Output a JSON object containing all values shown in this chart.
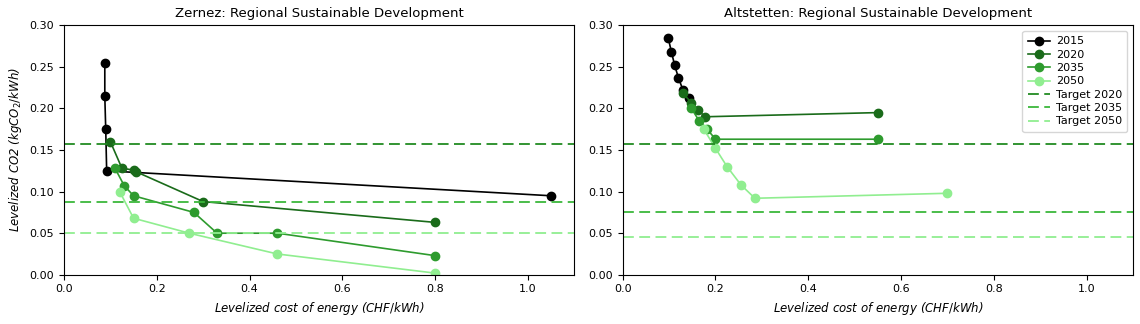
{
  "zernez_title": "Zernez: Regional Sustainable Development",
  "altstetten_title": "Altstetten: Regional Sustainable Development",
  "xlim": [
    0.0,
    1.1
  ],
  "ylim": [
    0.0,
    0.3
  ],
  "zernez": {
    "2015": {
      "x": [
        0.088,
        0.088,
        0.09,
        0.092,
        1.05
      ],
      "y": [
        0.255,
        0.215,
        0.175,
        0.125,
        0.095
      ],
      "color": "#000000"
    },
    "2020": {
      "x": [
        0.1,
        0.125,
        0.15,
        0.155,
        0.3,
        0.8
      ],
      "y": [
        0.16,
        0.128,
        0.126,
        0.124,
        0.088,
        0.063
      ],
      "color": "#1a6b1a"
    },
    "2035": {
      "x": [
        0.11,
        0.13,
        0.15,
        0.28,
        0.33,
        0.46,
        0.8
      ],
      "y": [
        0.128,
        0.107,
        0.095,
        0.075,
        0.05,
        0.05,
        0.023
      ],
      "color": "#2e9b2e"
    },
    "2050": {
      "x": [
        0.12,
        0.15,
        0.27,
        0.46,
        0.8
      ],
      "y": [
        0.1,
        0.068,
        0.05,
        0.025,
        0.002
      ],
      "color": "#90ee90"
    }
  },
  "altstetten": {
    "2015": {
      "x": [
        0.098,
        0.105,
        0.112,
        0.12,
        0.13,
        0.142
      ],
      "y": [
        0.285,
        0.268,
        0.252,
        0.237,
        0.222,
        0.212
      ],
      "color": "#000000"
    },
    "2020": {
      "x": [
        0.13,
        0.148,
        0.162,
        0.178,
        0.55
      ],
      "y": [
        0.218,
        0.207,
        0.198,
        0.19,
        0.195
      ],
      "color": "#1a6b1a"
    },
    "2035": {
      "x": [
        0.148,
        0.165,
        0.182,
        0.2,
        0.55
      ],
      "y": [
        0.2,
        0.185,
        0.175,
        0.163,
        0.163
      ],
      "color": "#2e9b2e"
    },
    "2050": {
      "x": [
        0.175,
        0.2,
        0.225,
        0.255,
        0.285,
        0.7
      ],
      "y": [
        0.175,
        0.152,
        0.13,
        0.108,
        0.092,
        0.098
      ],
      "color": "#90ee90"
    }
  },
  "zernez_targets": {
    "2020": {
      "value": 0.157,
      "color": "#228B22"
    },
    "2035": {
      "value": 0.088,
      "color": "#3cb83c"
    },
    "2050": {
      "value": 0.05,
      "color": "#90EE90"
    }
  },
  "altstetten_targets": {
    "2020": {
      "value": 0.157,
      "color": "#228B22"
    },
    "2035": {
      "value": 0.075,
      "color": "#3cb83c"
    },
    "2050": {
      "value": 0.045,
      "color": "#90EE90"
    }
  },
  "marker_size": 6,
  "line_width": 1.2
}
